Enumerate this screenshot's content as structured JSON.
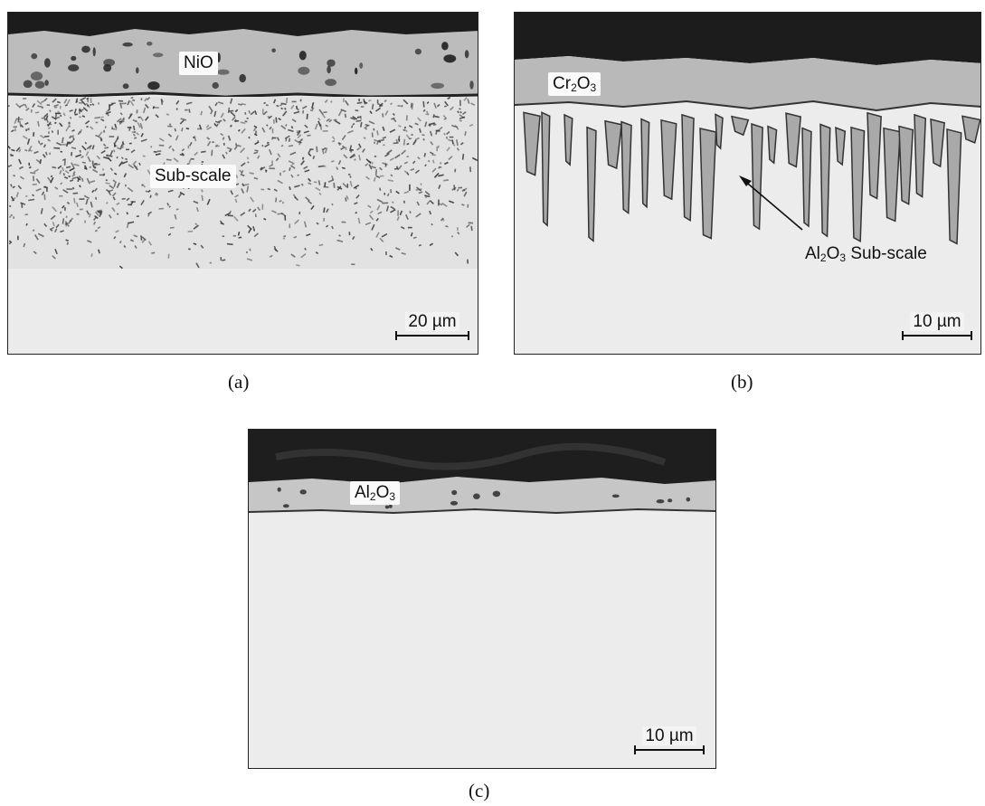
{
  "panels": {
    "a": {
      "caption": "(a)",
      "scale_bar": "20 µm",
      "labels": {
        "scale_layer": "NiO",
        "subscale": "Sub-scale"
      }
    },
    "b": {
      "caption": "(b)",
      "scale_bar": "10 µm",
      "labels": {
        "scale_layer": {
          "base": "Cr",
          "sub1": "2",
          "mid": "O",
          "sub2": "3"
        },
        "subscale": {
          "base": "Al",
          "sub1": "2",
          "mid": "O",
          "sub2": "3",
          "tail": " Sub-scale"
        }
      }
    },
    "c": {
      "caption": "(c)",
      "scale_bar": "10 µm",
      "labels": {
        "scale_layer": {
          "base": "Al",
          "sub1": "2",
          "mid": "O",
          "sub2": "3"
        }
      }
    }
  },
  "colors": {
    "mounting_resin": "#1c1c1c",
    "oxide_scale": "#bdbdbd",
    "substrate": "#ececec",
    "subscale_dark": "#3c3c3c"
  }
}
